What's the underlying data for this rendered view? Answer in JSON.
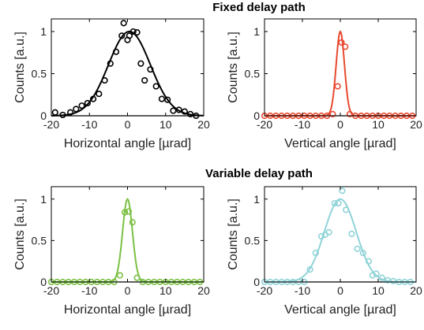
{
  "sections": [
    {
      "title": "Fixed delay path"
    },
    {
      "title": "Variable delay path"
    }
  ],
  "chart_data": [
    {
      "type": "scatter",
      "xlabel": "Horizontal angle [µrad]",
      "ylabel": "Counts [a.u.]",
      "xlim": [
        -20,
        20
      ],
      "ylim": [
        0,
        1.15
      ],
      "xticks": [
        -20,
        -10,
        0,
        10,
        20
      ],
      "yticks": [
        0,
        0.5,
        1
      ],
      "color": "#000000",
      "points": {
        "x": [
          -19,
          -17,
          -15,
          -13.5,
          -12,
          -10.5,
          -9,
          -7.5,
          -6,
          -4.5,
          -3,
          -1.5,
          -1,
          0,
          0.5,
          1.5,
          2.5,
          3.5,
          4.5,
          6,
          7.5,
          9,
          10.5,
          12,
          13.5,
          15,
          16.5,
          18
        ],
        "y": [
          0.04,
          0.01,
          0.04,
          0.08,
          0.12,
          0.15,
          0.2,
          0.26,
          0.42,
          0.62,
          0.76,
          0.95,
          1.1,
          0.9,
          0.95,
          1.0,
          0.99,
          0.62,
          0.42,
          0.55,
          0.35,
          0.2,
          0.19,
          0.06,
          0.07,
          0.05,
          0.02,
          0.0
        ]
      },
      "fit": {
        "type": "gaussian",
        "amplitude": 1.0,
        "center": 0.5,
        "sigma": 5.5
      }
    },
    {
      "type": "scatter",
      "xlabel": "Vertical angle [µrad]",
      "ylabel": "Counts [a.u.]",
      "xlim": [
        -20,
        20
      ],
      "ylim": [
        0,
        1.15
      ],
      "xticks": [
        -20,
        -10,
        0,
        10,
        20
      ],
      "yticks": [
        0,
        0.5,
        1
      ],
      "color": "#E8492F",
      "points": {
        "x": [
          -20,
          -18.5,
          -17,
          -15.5,
          -14,
          -12.5,
          -11,
          -9.5,
          -8,
          -6.5,
          -5,
          -3.5,
          -2,
          -0.7,
          0.3,
          1.3,
          2.5,
          4,
          5.5,
          7,
          8.5,
          10,
          11.5,
          13,
          14.5,
          16,
          17.5,
          19
        ],
        "y": [
          0,
          0,
          0,
          0,
          0,
          0,
          0,
          0,
          0,
          0,
          0,
          0,
          0.02,
          0.35,
          0.87,
          0.82,
          0.02,
          0,
          0,
          0,
          0,
          0,
          0,
          0,
          0,
          0,
          0,
          0
        ]
      },
      "fit": {
        "type": "gaussian",
        "amplitude": 1.0,
        "center": 0,
        "sigma": 1.1
      }
    },
    {
      "type": "scatter",
      "xlabel": "Horizontal angle [µrad]",
      "ylabel": "Counts [a.u.]",
      "xlim": [
        -20,
        20
      ],
      "ylim": [
        0,
        1.15
      ],
      "xticks": [
        -20,
        -10,
        0,
        10,
        20
      ],
      "yticks": [
        0,
        0.5,
        1
      ],
      "color": "#7BC043",
      "points": {
        "x": [
          -20,
          -18.5,
          -17,
          -15.5,
          -14,
          -12.5,
          -11,
          -9.5,
          -8,
          -6.5,
          -5,
          -3.5,
          -2,
          -0.7,
          0.3,
          1.3,
          2.5,
          4,
          5.5,
          7,
          8.5,
          10,
          11.5,
          13,
          14.5,
          16,
          17.5,
          19
        ],
        "y": [
          0,
          0,
          0,
          0,
          0,
          0,
          0,
          0,
          0,
          0,
          0,
          0,
          0.08,
          0.84,
          0.85,
          0.72,
          0.05,
          0.0,
          0,
          0,
          0,
          0,
          0,
          0,
          0,
          0,
          0,
          0
        ]
      },
      "fit": {
        "type": "gaussian",
        "amplitude": 1.0,
        "center": 0,
        "sigma": 1.3
      }
    },
    {
      "type": "scatter",
      "xlabel": "Vertical angle [µrad]",
      "ylabel": "Counts [a.u.]",
      "xlim": [
        -20,
        20
      ],
      "ylim": [
        0,
        1.15
      ],
      "xticks": [
        -20,
        -10,
        0,
        10,
        20
      ],
      "yticks": [
        0,
        0.5,
        1
      ],
      "color": "#8FD3D8",
      "points": {
        "x": [
          -20,
          -18.5,
          -17,
          -15.5,
          -14,
          -12.5,
          -11,
          -9.5,
          -8,
          -6.5,
          -5,
          -4,
          -3,
          -1.5,
          -0.5,
          0.5,
          1.5,
          3,
          4.5,
          6,
          7.5,
          8.5,
          9.5,
          11,
          12.5,
          14,
          15.5,
          17,
          18.5
        ],
        "y": [
          0,
          0,
          0,
          0,
          0,
          0,
          0,
          0.0,
          0.15,
          0.35,
          0.55,
          0.57,
          0.6,
          0.95,
          0.95,
          1.1,
          0.87,
          0.58,
          0.4,
          0.35,
          0.25,
          0.08,
          0.1,
          0.05,
          0.02,
          0.01,
          0,
          0,
          0
        ]
      },
      "fit": {
        "type": "gaussian",
        "amplitude": 1.0,
        "center": 0,
        "sigma": 4.2
      }
    }
  ]
}
